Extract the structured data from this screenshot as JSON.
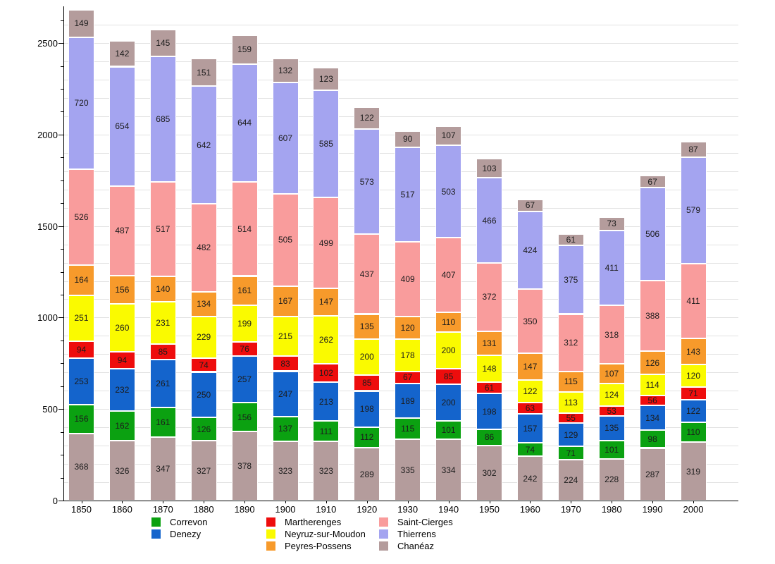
{
  "chart_data": {
    "type": "bar",
    "stacked": true,
    "title": "",
    "categories": [
      "1850",
      "1860",
      "1870",
      "1880",
      "1890",
      "1900",
      "1910",
      "1920",
      "1930",
      "1940",
      "1950",
      "1960",
      "1970",
      "1980",
      "1990",
      "2000"
    ],
    "series": [
      {
        "name": "",
        "in_legend": false,
        "color": "#b49c9c",
        "values": [
          368,
          326,
          347,
          327,
          378,
          323,
          323,
          289,
          335,
          334,
          302,
          242,
          224,
          228,
          287,
          319
        ]
      },
      {
        "name": "Correvon",
        "in_legend": true,
        "color": "#0ba111",
        "values": [
          156,
          162,
          161,
          126,
          156,
          137,
          111,
          112,
          115,
          101,
          86,
          74,
          71,
          101,
          98,
          110
        ]
      },
      {
        "name": "Denezy",
        "in_legend": true,
        "color": "#1464cc",
        "values": [
          253,
          232,
          261,
          250,
          257,
          247,
          213,
          198,
          189,
          200,
          198,
          157,
          129,
          135,
          134,
          122
        ]
      },
      {
        "name": "Martherenges",
        "in_legend": true,
        "color": "#ee0d0d",
        "values": [
          94,
          94,
          85,
          74,
          76,
          83,
          102,
          85,
          67,
          85,
          61,
          63,
          55,
          53,
          56,
          71
        ]
      },
      {
        "name": "Neyruz-sur-Moudon",
        "in_legend": true,
        "color": "#fafa00",
        "values": [
          251,
          260,
          231,
          229,
          199,
          215,
          262,
          200,
          178,
          200,
          148,
          122,
          113,
          124,
          114,
          120
        ]
      },
      {
        "name": "Peyres-Possens",
        "in_legend": true,
        "color": "#f79a2b",
        "values": [
          164,
          156,
          140,
          134,
          161,
          167,
          147,
          135,
          120,
          110,
          131,
          147,
          115,
          107,
          126,
          143
        ]
      },
      {
        "name": "Saint-Cierges",
        "in_legend": true,
        "color": "#f99c9c",
        "values": [
          526,
          487,
          517,
          482,
          514,
          505,
          499,
          437,
          409,
          407,
          372,
          350,
          312,
          318,
          388,
          411
        ]
      },
      {
        "name": "Thierrens",
        "in_legend": true,
        "color": "#a4a4f0",
        "values": [
          720,
          654,
          685,
          642,
          644,
          607,
          585,
          573,
          517,
          503,
          466,
          424,
          375,
          411,
          506,
          579
        ]
      },
      {
        "name": "Chanéaz",
        "in_legend": true,
        "color": "#b49c9c",
        "values": [
          149,
          142,
          145,
          151,
          159,
          132,
          123,
          122,
          90,
          107,
          103,
          67,
          61,
          73,
          67,
          87
        ]
      }
    ],
    "y_ticks": [
      0,
      500,
      1000,
      1500,
      2000,
      2500
    ],
    "ylim": [
      0,
      2700
    ],
    "grid": true,
    "grid_step": 100,
    "minor_tick_step": 125,
    "legend_position": "bottom",
    "legend": {
      "columns": [
        [
          "Correvon",
          "Denezy"
        ],
        [
          "Martherenges",
          "Neyruz-sur-Moudon",
          "Peyres-Possens"
        ],
        [
          "Saint-Cierges",
          "Thierrens",
          "Chanéaz"
        ]
      ]
    }
  }
}
